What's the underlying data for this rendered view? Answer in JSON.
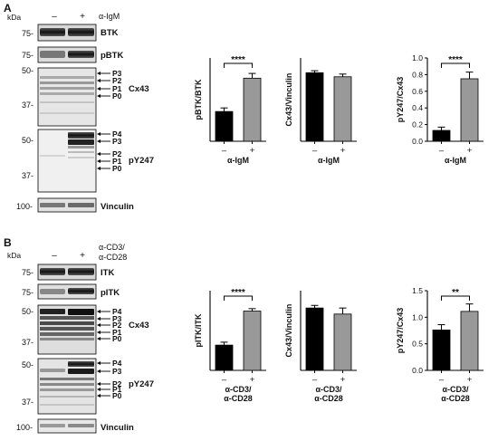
{
  "panels": [
    {
      "letter": "A",
      "kda_label": "kDa",
      "lane_labels": [
        "–",
        "+"
      ],
      "treatment": [
        "α-IgM"
      ],
      "blots": [
        {
          "name": "BTK",
          "markers": [
            "75-"
          ],
          "bands": []
        },
        {
          "name": "pBTK",
          "markers": [
            "75-"
          ],
          "bands": []
        },
        {
          "name": "Cx43",
          "markers": [
            "50-",
            "37-"
          ],
          "bands": [
            "P3",
            "P2",
            "P1",
            "P0"
          ]
        },
        {
          "name": "pY247",
          "markers": [
            "50-",
            "37-"
          ],
          "bands": [
            "P4",
            "P3",
            "P2",
            "P1",
            "P0"
          ]
        },
        {
          "name": "Vinculin",
          "markers": [
            "100-"
          ],
          "bands": []
        }
      ]
    },
    {
      "letter": "B",
      "kda_label": "kDa",
      "lane_labels": [
        "–",
        "+"
      ],
      "treatment": [
        "α-CD3/",
        "α-CD28"
      ],
      "blots": [
        {
          "name": "ITK",
          "markers": [
            "75-"
          ],
          "bands": []
        },
        {
          "name": "pITK",
          "markers": [
            "75-"
          ],
          "bands": []
        },
        {
          "name": "Cx43",
          "markers": [
            "50-",
            "37-"
          ],
          "bands": [
            "P4",
            "P3",
            "P2",
            "P1",
            "P0"
          ]
        },
        {
          "name": "pY247",
          "markers": [
            "50-",
            "37-"
          ],
          "bands": [
            "P4",
            "P3",
            "P2",
            "P1",
            "P0"
          ]
        },
        {
          "name": "Vinculin",
          "markers": [
            "100-"
          ],
          "bands": []
        }
      ]
    }
  ],
  "chart_data": [
    {
      "type": "bar",
      "ylabel": "pBTK/BTK",
      "categories": [
        "–",
        "+"
      ],
      "xlabel": [
        "α-IgM"
      ],
      "values": [
        0.25,
        0.53
      ],
      "errors": [
        0.03,
        0.04
      ],
      "colors": [
        "#000000",
        "#999999"
      ],
      "ylim": [
        0,
        0.7
      ],
      "yticks": [],
      "significance": "****"
    },
    {
      "type": "bar",
      "ylabel": "Cx43/Vinculin",
      "categories": [
        "–",
        "+"
      ],
      "xlabel": [
        "α-IgM"
      ],
      "values": [
        0.51,
        0.48
      ],
      "errors": [
        0.015,
        0.02
      ],
      "colors": [
        "#000000",
        "#999999"
      ],
      "ylim": [
        0,
        0.62
      ],
      "yticks": [],
      "significance": ""
    },
    {
      "type": "bar",
      "ylabel": "pY247/Cx43",
      "categories": [
        "–",
        "+"
      ],
      "xlabel": [
        "α-IgM"
      ],
      "values": [
        0.13,
        0.75
      ],
      "errors": [
        0.04,
        0.08
      ],
      "colors": [
        "#000000",
        "#999999"
      ],
      "ylim": [
        0,
        1.0
      ],
      "yticks": [
        "0.0",
        "0.2",
        "0.4",
        "0.6",
        "0.8",
        "1.0"
      ],
      "significance": "****"
    },
    {
      "type": "bar",
      "ylabel": "pITK/ITK",
      "categories": [
        "–",
        "+"
      ],
      "xlabel": [
        "α-CD3/",
        "α-CD28"
      ],
      "values": [
        0.26,
        0.61
      ],
      "errors": [
        0.03,
        0.025
      ],
      "colors": [
        "#000000",
        "#999999"
      ],
      "ylim": [
        0,
        0.82
      ],
      "yticks": [],
      "significance": "****"
    },
    {
      "type": "bar",
      "ylabel": "Cx43/Vinculin",
      "categories": [
        "–",
        "+"
      ],
      "xlabel": [
        "α-CD3/",
        "α-CD28"
      ],
      "values": [
        0.72,
        0.65
      ],
      "errors": [
        0.03,
        0.07
      ],
      "colors": [
        "#000000",
        "#999999"
      ],
      "ylim": [
        0,
        0.92
      ],
      "yticks": [],
      "significance": ""
    },
    {
      "type": "bar",
      "ylabel": "pY247/Cx43",
      "categories": [
        "–",
        "+"
      ],
      "xlabel": [
        "α-CD3/",
        "α-CD28"
      ],
      "values": [
        0.76,
        1.11
      ],
      "errors": [
        0.1,
        0.14
      ],
      "colors": [
        "#000000",
        "#999999"
      ],
      "ylim": [
        0,
        1.5
      ],
      "yticks": [
        "0.0",
        "0.5",
        "1.0",
        "1.5"
      ],
      "significance": "**"
    }
  ]
}
